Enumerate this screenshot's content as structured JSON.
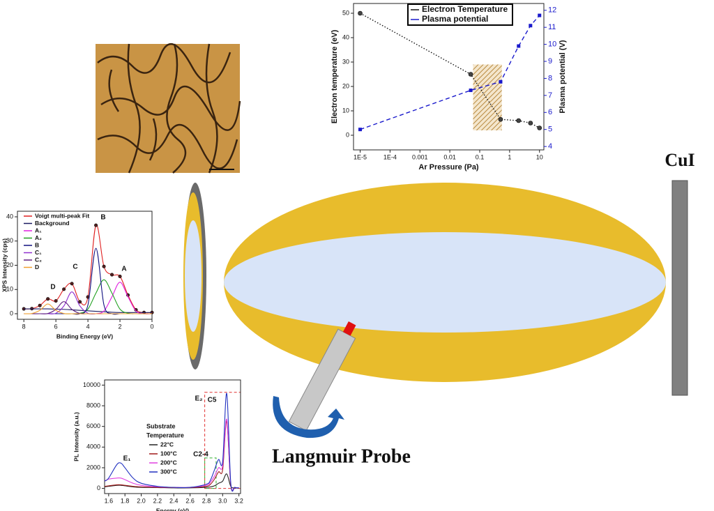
{
  "chart_data": [
    {
      "type": "line",
      "x_label": "Ar Pressure (Pa)",
      "y_label": "Electron temperature (eV)",
      "y2_label": "Plasma potential  (V)",
      "xscale": "log",
      "xlim": [
        6e-06,
        14
      ],
      "ylim": [
        -6,
        54
      ],
      "y2lim": [
        3.8,
        12.4
      ],
      "xticks": [
        {
          "value": 1e-05,
          "label": "1E-5"
        },
        {
          "value": 0.0001,
          "label": "1E-4"
        },
        0.001,
        0.01,
        0.1,
        1,
        10
      ],
      "yticks": [
        0,
        10,
        20,
        30,
        40,
        50
      ],
      "y2ticks": [
        4,
        5,
        6,
        7,
        8,
        9,
        10,
        11,
        12
      ],
      "x": [
        1e-05,
        0.05,
        0.5,
        2,
        5,
        10
      ],
      "series": [
        {
          "name": "Electron Temperature",
          "color": "#111111",
          "line_style": "dotted",
          "marker": "circle",
          "values": [
            50,
            25,
            6.5,
            6,
            5,
            3
          ]
        },
        {
          "name": "Plasma potential",
          "color": "#1a1acc",
          "line_style": "dashed",
          "marker": "square",
          "axis": "y2",
          "values": [
            5,
            7.3,
            7.8,
            9.9,
            11.1,
            11.7
          ]
        }
      ],
      "highlight_x": [
        0.06,
        0.55
      ],
      "highlight_ylim": [
        2,
        29
      ],
      "legend": "upper center"
    },
    {
      "type": "line",
      "x_label": "Binding Energy (eV)",
      "y_label": "XPS Intensity (cps)",
      "xlim": [
        8.4,
        0
      ],
      "ylim": [
        -2.3,
        42.3
      ],
      "xticks": [
        8,
        6,
        4,
        2,
        0
      ],
      "yticks": [
        0,
        10,
        20,
        30,
        40
      ],
      "x": [
        8,
        7.5,
        7,
        6.5,
        6,
        5.5,
        5,
        4.5,
        4,
        3.5,
        3,
        2.5,
        2,
        1.5,
        1,
        0.5,
        0
      ],
      "series": [
        {
          "name": "Voigt multi-peak Fit",
          "color": "#e02020",
          "marker": "circle",
          "values": [
            2,
            2.1,
            3.4,
            6.1,
            5.3,
            10.1,
            12.4,
            4.9,
            6.9,
            36.5,
            19.5,
            16.1,
            15.4,
            7.7,
            1.6,
            0.5,
            0.5
          ]
        },
        {
          "name": "Background",
          "color": "#1a1a60",
          "values": [
            2,
            2,
            2,
            2,
            1.9,
            1.8,
            1.6,
            1.4,
            1.2,
            1.0,
            0.8,
            0.6,
            0.5,
            0.5,
            0.5,
            0.5,
            0.5
          ]
        },
        {
          "name": "A₁",
          "color": "#e020e0",
          "values": [
            0,
            0,
            0,
            0,
            0,
            0,
            0,
            0,
            0,
            0,
            1.1,
            7,
            13,
            7,
            1.1,
            0,
            0
          ]
        },
        {
          "name": "A₂",
          "color": "#20a020",
          "values": [
            0,
            0,
            0,
            0,
            0,
            0,
            0,
            0.2,
            1.9,
            8.5,
            14,
            8.5,
            1.9,
            0.2,
            0,
            0,
            0
          ]
        },
        {
          "name": "B",
          "color": "#101080",
          "values": [
            0,
            0,
            0,
            0,
            0,
            0,
            0,
            0,
            3.6,
            27,
            3.6,
            0,
            0,
            0,
            0,
            0,
            0
          ]
        },
        {
          "name": "C₁",
          "color": "#9030d0",
          "values": [
            0,
            0,
            0,
            0,
            0.2,
            3.2,
            9,
            3.2,
            0.2,
            0,
            0,
            0,
            0,
            0,
            0,
            0,
            0
          ]
        },
        {
          "name": "C₂",
          "color": "#602080",
          "values": [
            0,
            0,
            0,
            0.1,
            1.8,
            5,
            1.8,
            0.1,
            0,
            0,
            0,
            0,
            0,
            0,
            0,
            0,
            0
          ]
        },
        {
          "name": "D",
          "color": "#f0a030",
          "values": [
            0,
            0.1,
            1.4,
            4,
            1.4,
            0.1,
            0,
            0,
            0,
            0,
            0,
            0,
            0,
            0,
            0,
            0,
            0
          ]
        }
      ],
      "annotations": [
        "A",
        "B",
        "C",
        "D"
      ],
      "legend": "upper left"
    },
    {
      "type": "line",
      "x_label": "Energy (eV)",
      "y_label": "PL Intensity (a.u.)",
      "xlim": [
        1.55,
        3.22
      ],
      "ylim": [
        -500,
        10500
      ],
      "xticks": [
        1.6,
        1.8,
        {
          "value": 2,
          "label": "2.0"
        },
        2.2,
        2.4,
        2.6,
        2.8,
        {
          "value": 3,
          "label": "3.0"
        },
        3.2
      ],
      "yticks": [
        0,
        2000,
        4000,
        6000,
        8000,
        10000
      ],
      "x": [
        1.55,
        1.6,
        1.7,
        1.75,
        1.8,
        1.9,
        2.0,
        2.2,
        2.4,
        2.6,
        2.8,
        2.85,
        2.9,
        2.95,
        3.0,
        3.05,
        3.1,
        3.15,
        3.2
      ],
      "legend_title": [
        "Substrate",
        "Temperature"
      ],
      "series": [
        {
          "name": "22°C",
          "color": "#222222",
          "values": [
            150,
            200,
            300,
            300,
            250,
            150,
            100,
            80,
            50,
            50,
            100,
            150,
            250,
            500,
            700,
            1400,
            200,
            50,
            20
          ]
        },
        {
          "name": "100°C",
          "color": "#a01818",
          "values": [
            200,
            250,
            350,
            350,
            300,
            200,
            150,
            100,
            80,
            80,
            200,
            400,
            900,
            1600,
            1800,
            6500,
            300,
            80,
            30
          ]
        },
        {
          "name": "200°C",
          "color": "#e040e0",
          "values": [
            700,
            900,
            1000,
            1000,
            850,
            500,
            300,
            150,
            100,
            100,
            300,
            600,
            1200,
            2000,
            2200,
            6700,
            400,
            100,
            50
          ]
        },
        {
          "name": "300°C",
          "color": "#2030c0",
          "values": [
            700,
            1000,
            2300,
            2450,
            2000,
            1000,
            500,
            200,
            100,
            100,
            400,
            800,
            1800,
            2800,
            2600,
            9200,
            500,
            100,
            50
          ]
        }
      ],
      "annotations": [
        "E₁",
        "E₂",
        "C5",
        "C2-4"
      ],
      "boxes": [
        {
          "color": "#e03030",
          "x": [
            2.78,
            3.22
          ],
          "y": [
            0,
            9300
          ]
        },
        {
          "color": "#30b030",
          "x": [
            2.78,
            2.92
          ],
          "y": [
            0,
            2950
          ]
        }
      ],
      "legend": "center"
    }
  ],
  "labels": {
    "target": "CuI",
    "probe": "Langmuir Probe"
  }
}
